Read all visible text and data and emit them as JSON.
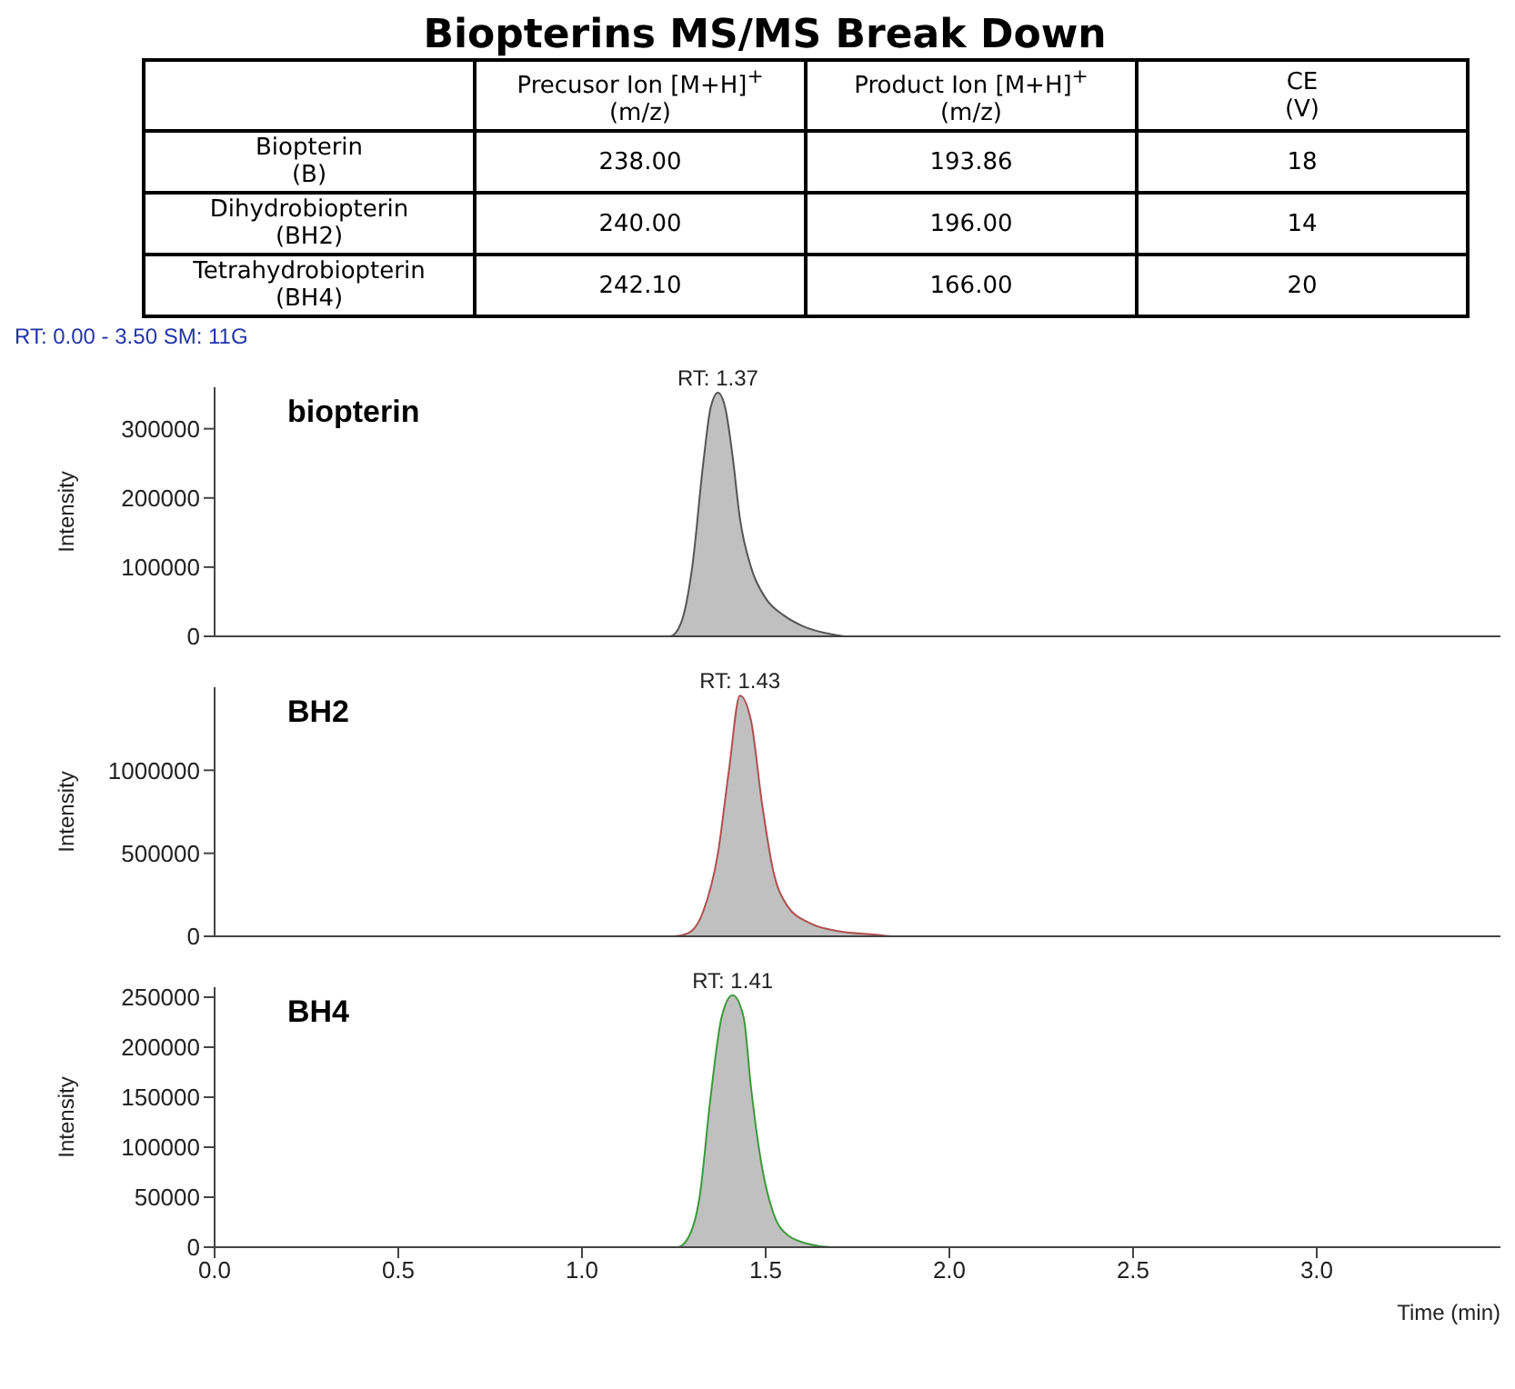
{
  "chart_data": [
    {
      "type": "other",
      "title": "Biopterins MS/MS Break Down",
      "annotations": [
        "Precusor Ion [M+H]$^{+}$\n(m/z)",
        "Product Ion [M+H]$^{+}$\n(m/z)",
        "CE\n(V)",
        "Biopterin\n(B)",
        "238.00",
        "193.86",
        "18",
        "Dihydrobiopterin\n(BH2)",
        "240.00",
        "196.00",
        "14",
        "Tetrahydrobiopterin\n(BH4)",
        "242.10",
        "166.00",
        "20"
      ]
    },
    {
      "type": "area",
      "subtitle": "RT: 0.00 - 3.50   SM: 11G",
      "ylabel": "Intensity",
      "xlim": [
        0,
        3.5
      ],
      "ylim": [
        0,
        360000
      ],
      "yticks": [
        0,
        100000,
        200000,
        300000
      ],
      "tick_labels": "y",
      "grid": false,
      "legend": false,
      "annotations": [
        {
          "text": "RT: 1.37",
          "x": 1.37,
          "y": 352000
        }
      ],
      "x": [
        0,
        1.2,
        1.24,
        1.27,
        1.3,
        1.33,
        1.35,
        1.37,
        1.39,
        1.41,
        1.43,
        1.46,
        1.5,
        1.55,
        1.6,
        1.68,
        1.72,
        3.5
      ],
      "series": [
        {
          "name": "biopterin",
          "color": "#555555",
          "values": [
            0,
            0,
            0,
            20000,
            100000,
            250000,
            330000,
            352000,
            330000,
            260000,
            170000,
            100000,
            55000,
            30000,
            15000,
            3000,
            0,
            0
          ]
        }
      ]
    },
    {
      "type": "area",
      "ylabel": "Intensity",
      "xlim": [
        0,
        3.5
      ],
      "ylim": [
        0,
        1500000
      ],
      "yticks": [
        0,
        500000,
        1000000
      ],
      "tick_labels": "y",
      "grid": false,
      "legend": false,
      "annotations": [
        {
          "text": "RT: 1.43",
          "x": 1.43,
          "y": 1450000
        }
      ],
      "x": [
        0,
        1.25,
        1.29,
        1.33,
        1.37,
        1.4,
        1.43,
        1.46,
        1.49,
        1.52,
        1.56,
        1.62,
        1.7,
        1.8,
        1.85,
        3.5
      ],
      "series": [
        {
          "name": "BH2",
          "color": "#b05050",
          "values": [
            0,
            0,
            20000,
            150000,
            500000,
            1000000,
            1450000,
            1300000,
            800000,
            400000,
            180000,
            80000,
            30000,
            10000,
            0,
            0
          ]
        }
      ]
    },
    {
      "type": "area",
      "xlabel": "Time (min)",
      "ylabel": "Intensity",
      "xlim": [
        0,
        3.5
      ],
      "xticks": [
        {
          "value": 0,
          "label": "0.0"
        },
        {
          "value": 0.5,
          "label": "0.5"
        },
        {
          "value": 1,
          "label": "1.0"
        },
        {
          "value": 1.5,
          "label": "1.5"
        },
        {
          "value": 2,
          "label": "2.0"
        },
        {
          "value": 2.5,
          "label": "2.5"
        },
        {
          "value": 3,
          "label": "3.0"
        }
      ],
      "ylim": [
        0,
        260000
      ],
      "yticks": [
        0,
        50000,
        100000,
        150000,
        200000,
        250000
      ],
      "grid": false,
      "legend": false,
      "annotations": [
        {
          "text": "RT: 1.41",
          "x": 1.41,
          "y": 252000
        }
      ],
      "x": [
        0,
        1.26,
        1.29,
        1.32,
        1.35,
        1.38,
        1.41,
        1.44,
        1.46,
        1.49,
        1.52,
        1.56,
        1.62,
        1.68,
        3.5
      ],
      "series": [
        {
          "name": "BH4",
          "color": "#3a9a3a",
          "values": [
            0,
            0,
            10000,
            50000,
            150000,
            230000,
            252000,
            230000,
            160000,
            80000,
            35000,
            12000,
            3000,
            0,
            0
          ]
        }
      ]
    }
  ]
}
